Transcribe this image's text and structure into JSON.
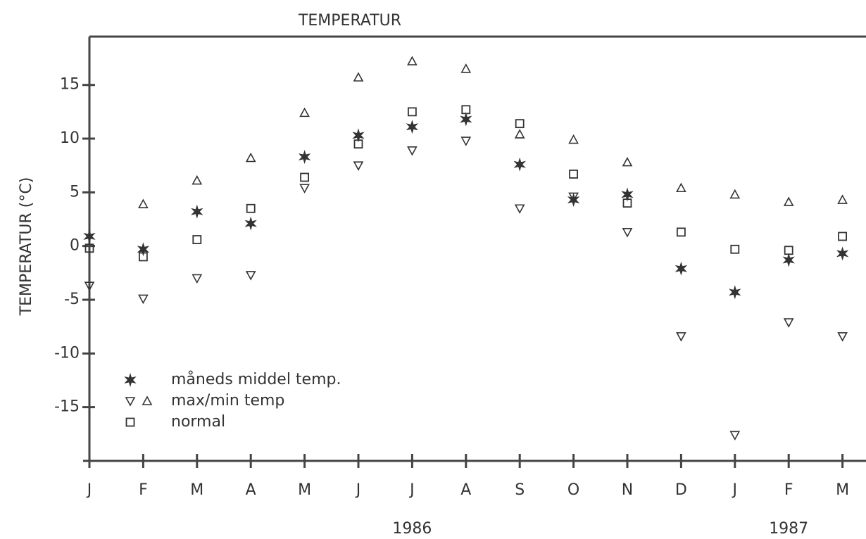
{
  "chart_data": {
    "type": "scatter",
    "title": "TEMPERATUR",
    "y_label": "TEMPERATUR (°C)",
    "categories": [
      "J",
      "F",
      "M",
      "A",
      "M",
      "J",
      "J",
      "A",
      "S",
      "O",
      "N",
      "D",
      "J",
      "F",
      "M"
    ],
    "year_labels": [
      "1986",
      "1987"
    ],
    "ylim": [
      -20,
      19.5
    ],
    "yticks": [
      -15,
      -10,
      -5,
      0,
      5,
      10,
      15
    ],
    "grid": false,
    "legend": "lower left",
    "color": "#333333",
    "series": [
      {
        "name": "måneds middel temp.",
        "marker": "star",
        "values": [
          0.9,
          -0.3,
          3.2,
          2.1,
          8.3,
          10.3,
          11.1,
          11.8,
          7.6,
          4.3,
          4.8,
          -2.1,
          -4.3,
          -1.3,
          -0.7
        ]
      },
      {
        "name": "max/min temp",
        "marker": "triangle",
        "max": [
          null,
          3.9,
          6.1,
          8.2,
          12.4,
          15.7,
          17.2,
          16.5,
          10.4,
          9.9,
          7.8,
          5.4,
          4.8,
          4.1,
          4.3
        ],
        "min": [
          -3.7,
          -4.9,
          -3.0,
          -2.7,
          5.4,
          7.5,
          8.9,
          9.8,
          3.5,
          4.6,
          1.3,
          -8.4,
          -17.6,
          -7.1,
          -8.4
        ]
      },
      {
        "name": "normal",
        "marker": "square",
        "values": [
          -0.2,
          -1.0,
          0.6,
          3.5,
          6.4,
          9.5,
          12.5,
          12.7,
          11.4,
          6.7,
          4.0,
          1.3,
          -0.3,
          -0.4,
          0.9
        ]
      }
    ]
  }
}
